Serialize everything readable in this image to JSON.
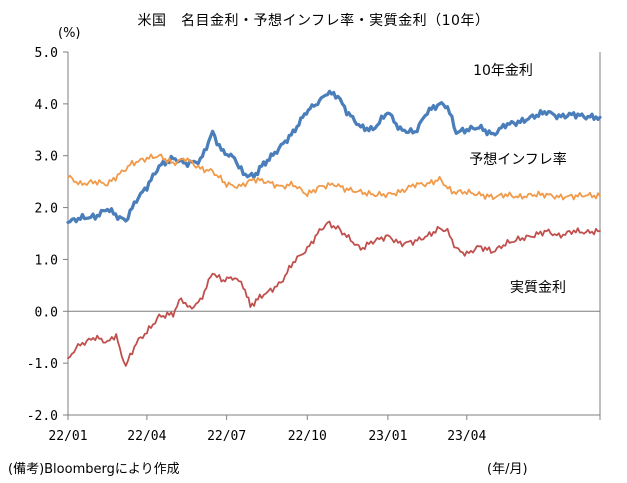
{
  "chart_data": {
    "type": "line",
    "title": "米国　名目金利・予想インフレ率・実質金利（10年）",
    "ylabel": "(%)",
    "xlabel": "(年/月)",
    "source": "(備考)Bloombergにより作成",
    "ylim": [
      -2.0,
      5.0
    ],
    "xlim": [
      "2022-01-01",
      "2023-08-31"
    ],
    "yticks": [
      "5.0",
      "4.0",
      "3.0",
      "2.0",
      "1.0",
      "0.0",
      "-1.0",
      "-2.0"
    ],
    "xticks": [
      "22/01",
      "22/04",
      "22/07",
      "22/10",
      "23/01",
      "23/04"
    ],
    "grid": false,
    "zero_line": true,
    "series": [
      {
        "name": "10年金利",
        "color": "#4a7ebb",
        "label_position": "top-right",
        "points": [
          [
            "2022-01-01",
            1.72
          ],
          [
            "2022-01-15",
            1.8
          ],
          [
            "2022-02-01",
            1.82
          ],
          [
            "2022-02-15",
            1.98
          ],
          [
            "2022-03-01",
            1.8
          ],
          [
            "2022-03-08",
            1.75
          ],
          [
            "2022-03-20",
            2.15
          ],
          [
            "2022-04-01",
            2.4
          ],
          [
            "2022-04-15",
            2.8
          ],
          [
            "2022-05-01",
            2.95
          ],
          [
            "2022-05-15",
            2.85
          ],
          [
            "2022-06-01",
            2.9
          ],
          [
            "2022-06-15",
            3.45
          ],
          [
            "2022-06-25",
            3.1
          ],
          [
            "2022-07-10",
            2.95
          ],
          [
            "2022-07-20",
            2.65
          ],
          [
            "2022-08-01",
            2.6
          ],
          [
            "2022-08-10",
            2.8
          ],
          [
            "2022-08-25",
            3.05
          ],
          [
            "2022-09-15",
            3.45
          ],
          [
            "2022-09-30",
            3.85
          ],
          [
            "2022-10-15",
            4.05
          ],
          [
            "2022-10-24",
            4.22
          ],
          [
            "2022-11-05",
            4.15
          ],
          [
            "2022-11-15",
            3.85
          ],
          [
            "2022-12-01",
            3.55
          ],
          [
            "2022-12-15",
            3.5
          ],
          [
            "2023-01-01",
            3.85
          ],
          [
            "2023-01-15",
            3.5
          ],
          [
            "2023-02-01",
            3.45
          ],
          [
            "2023-02-15",
            3.85
          ],
          [
            "2023-03-01",
            4.0
          ],
          [
            "2023-03-10",
            3.95
          ],
          [
            "2023-03-20",
            3.45
          ],
          [
            "2023-04-01",
            3.5
          ],
          [
            "2023-04-15",
            3.55
          ],
          [
            "2023-05-01",
            3.4
          ],
          [
            "2023-05-15",
            3.6
          ],
          [
            "2023-06-01",
            3.65
          ],
          [
            "2023-06-15",
            3.75
          ],
          [
            "2023-07-01",
            3.85
          ],
          [
            "2023-07-15",
            3.75
          ],
          [
            "2023-08-01",
            3.8
          ],
          [
            "2023-08-15",
            3.75
          ],
          [
            "2023-08-31",
            3.74
          ]
        ]
      },
      {
        "name": "予想インフレ率",
        "color": "#f09a4a",
        "label_position": "right",
        "points": [
          [
            "2022-01-01",
            2.6
          ],
          [
            "2022-01-15",
            2.45
          ],
          [
            "2022-02-01",
            2.5
          ],
          [
            "2022-02-15",
            2.45
          ],
          [
            "2022-03-01",
            2.65
          ],
          [
            "2022-03-15",
            2.85
          ],
          [
            "2022-04-01",
            2.95
          ],
          [
            "2022-04-15",
            3.0
          ],
          [
            "2022-05-01",
            2.85
          ],
          [
            "2022-05-15",
            2.95
          ],
          [
            "2022-06-01",
            2.75
          ],
          [
            "2022-06-15",
            2.7
          ],
          [
            "2022-07-01",
            2.45
          ],
          [
            "2022-07-15",
            2.4
          ],
          [
            "2022-08-01",
            2.55
          ],
          [
            "2022-08-15",
            2.5
          ],
          [
            "2022-09-01",
            2.4
          ],
          [
            "2022-09-15",
            2.45
          ],
          [
            "2022-10-01",
            2.25
          ],
          [
            "2022-10-15",
            2.4
          ],
          [
            "2022-11-01",
            2.45
          ],
          [
            "2022-11-15",
            2.35
          ],
          [
            "2022-12-01",
            2.3
          ],
          [
            "2022-12-15",
            2.25
          ],
          [
            "2023-01-01",
            2.25
          ],
          [
            "2023-01-15",
            2.3
          ],
          [
            "2023-02-01",
            2.45
          ],
          [
            "2023-02-15",
            2.45
          ],
          [
            "2023-03-01",
            2.55
          ],
          [
            "2023-03-15",
            2.3
          ],
          [
            "2023-04-01",
            2.3
          ],
          [
            "2023-04-15",
            2.25
          ],
          [
            "2023-05-01",
            2.2
          ],
          [
            "2023-05-15",
            2.25
          ],
          [
            "2023-06-01",
            2.2
          ],
          [
            "2023-06-15",
            2.25
          ],
          [
            "2023-07-01",
            2.25
          ],
          [
            "2023-07-15",
            2.2
          ],
          [
            "2023-08-01",
            2.22
          ],
          [
            "2023-08-15",
            2.24
          ],
          [
            "2023-08-31",
            2.22
          ]
        ]
      },
      {
        "name": "実質金利",
        "color": "#c0504d",
        "label_position": "lower-right",
        "points": [
          [
            "2022-01-01",
            -0.95
          ],
          [
            "2022-01-10",
            -0.7
          ],
          [
            "2022-01-20",
            -0.6
          ],
          [
            "2022-02-01",
            -0.5
          ],
          [
            "2022-02-15",
            -0.6
          ],
          [
            "2022-02-25",
            -0.45
          ],
          [
            "2022-03-01",
            -0.75
          ],
          [
            "2022-03-08",
            -1.05
          ],
          [
            "2022-03-20",
            -0.6
          ],
          [
            "2022-04-01",
            -0.4
          ],
          [
            "2022-04-15",
            -0.1
          ],
          [
            "2022-05-01",
            -0.05
          ],
          [
            "2022-05-10",
            0.25
          ],
          [
            "2022-05-20",
            0.05
          ],
          [
            "2022-06-01",
            0.2
          ],
          [
            "2022-06-15",
            0.75
          ],
          [
            "2022-06-25",
            0.6
          ],
          [
            "2022-07-10",
            0.65
          ],
          [
            "2022-07-20",
            0.5
          ],
          [
            "2022-07-28",
            0.1
          ],
          [
            "2022-08-10",
            0.3
          ],
          [
            "2022-08-20",
            0.4
          ],
          [
            "2022-09-01",
            0.55
          ],
          [
            "2022-09-15",
            0.95
          ],
          [
            "2022-10-01",
            1.2
          ],
          [
            "2022-10-15",
            1.55
          ],
          [
            "2022-10-24",
            1.7
          ],
          [
            "2022-11-05",
            1.6
          ],
          [
            "2022-11-15",
            1.45
          ],
          [
            "2022-12-01",
            1.2
          ],
          [
            "2022-12-15",
            1.35
          ],
          [
            "2023-01-01",
            1.45
          ],
          [
            "2023-01-15",
            1.3
          ],
          [
            "2023-02-01",
            1.35
          ],
          [
            "2023-02-15",
            1.45
          ],
          [
            "2023-03-01",
            1.6
          ],
          [
            "2023-03-10",
            1.55
          ],
          [
            "2023-03-20",
            1.2
          ],
          [
            "2023-04-01",
            1.1
          ],
          [
            "2023-04-15",
            1.25
          ],
          [
            "2023-05-01",
            1.15
          ],
          [
            "2023-05-15",
            1.3
          ],
          [
            "2023-06-01",
            1.4
          ],
          [
            "2023-06-15",
            1.45
          ],
          [
            "2023-07-01",
            1.55
          ],
          [
            "2023-07-15",
            1.45
          ],
          [
            "2023-08-01",
            1.55
          ],
          [
            "2023-08-15",
            1.52
          ],
          [
            "2023-08-31",
            1.55
          ]
        ]
      }
    ]
  }
}
